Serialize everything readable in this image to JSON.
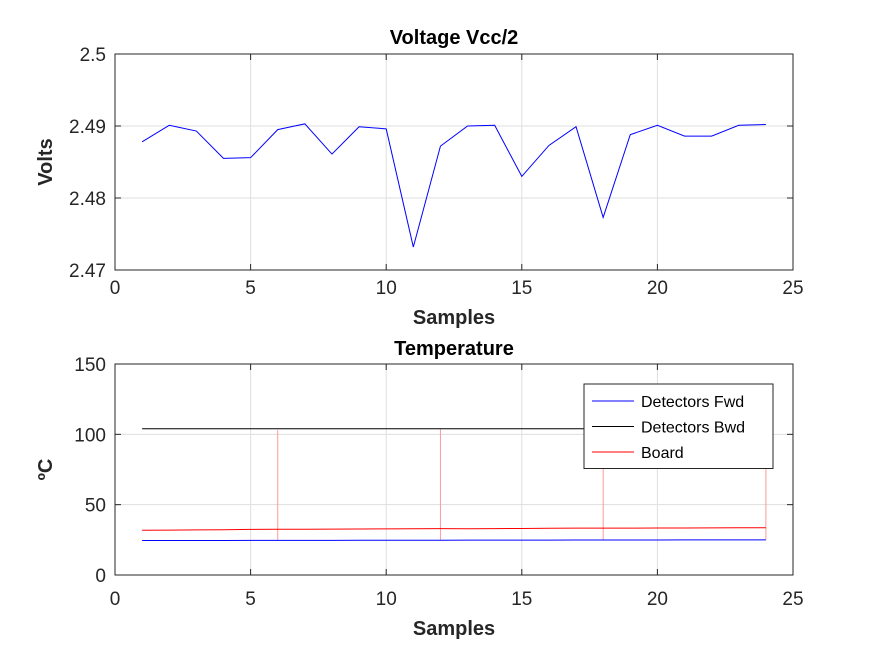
{
  "chart_data": [
    {
      "type": "line",
      "title": "Voltage Vcc/2",
      "xlabel": "Samples",
      "ylabel": "Volts",
      "xlim": [
        0,
        25
      ],
      "ylim": [
        2.47,
        2.5
      ],
      "xticks": [
        0,
        5,
        10,
        15,
        20,
        25
      ],
      "xtick_labels": [
        "0",
        "5",
        "10",
        "15",
        "20",
        "25"
      ],
      "yticks": [
        2.47,
        2.48,
        2.49,
        2.5
      ],
      "ytick_labels": [
        "2.47",
        "2.48",
        "2.49",
        "2.5"
      ],
      "grid": true,
      "series": [
        {
          "color": "#0000ff",
          "x": [
            1,
            2,
            3,
            4,
            5,
            6,
            7,
            8,
            9,
            10,
            11,
            12,
            13,
            14,
            15,
            16,
            17,
            18,
            19,
            20,
            21,
            22,
            23,
            24
          ],
          "y": [
            2.4878,
            2.4901,
            2.4893,
            2.4855,
            2.4856,
            2.4895,
            2.4903,
            2.4861,
            2.4899,
            2.4896,
            2.4732,
            2.4872,
            2.49,
            2.4901,
            2.483,
            2.4873,
            2.4899,
            2.4773,
            2.4888,
            2.4901,
            2.4886,
            2.4886,
            2.4901,
            2.4902
          ]
        }
      ]
    },
    {
      "type": "line",
      "title": "Temperature",
      "xlabel": "Samples",
      "ylabel": "ºC",
      "xlim": [
        0,
        25
      ],
      "ylim": [
        0,
        150
      ],
      "xticks": [
        0,
        5,
        10,
        15,
        20,
        25
      ],
      "xtick_labels": [
        "0",
        "5",
        "10",
        "15",
        "20",
        "25"
      ],
      "yticks": [
        0,
        50,
        100,
        150
      ],
      "ytick_labels": [
        "0",
        "50",
        "100",
        "150"
      ],
      "grid": true,
      "legend_placement": "top-right",
      "series": [
        {
          "name": "Detectors Fwd",
          "color": "#0000ff",
          "x": [
            1,
            2,
            3,
            4,
            5,
            6,
            7,
            8,
            9,
            10,
            11,
            12,
            13,
            14,
            15,
            16,
            17,
            18,
            19,
            20,
            21,
            22,
            23,
            24
          ],
          "y": [
            24.5,
            24.5,
            24.5,
            24.5,
            24.6,
            24.6,
            24.6,
            24.6,
            24.7,
            24.7,
            24.7,
            24.7,
            24.8,
            24.8,
            24.8,
            24.8,
            24.9,
            24.9,
            24.9,
            24.9,
            25.0,
            25.0,
            25.0,
            25.0
          ]
        },
        {
          "name": "Detectors Bwd",
          "color": "#000000",
          "x": [
            1,
            2,
            3,
            4,
            5,
            6,
            7,
            8,
            9,
            10,
            11,
            12,
            13,
            14,
            15,
            16,
            17,
            18,
            19,
            20,
            21,
            22,
            23,
            24
          ],
          "y": [
            104,
            104,
            104,
            104,
            104,
            104,
            104,
            104,
            104,
            104,
            104,
            104,
            104,
            104,
            104,
            104,
            104,
            104,
            104,
            104,
            104,
            104,
            104,
            104
          ]
        },
        {
          "name": "Board",
          "color": "#ff0000",
          "x": [
            1,
            2,
            3,
            4,
            5,
            6,
            7,
            8,
            9,
            10,
            11,
            12,
            13,
            14,
            15,
            16,
            17,
            18,
            19,
            20,
            21,
            22,
            23,
            24
          ],
          "y": [
            31.8,
            31.9,
            32.1,
            32.2,
            32.4,
            32.5,
            32.5,
            32.6,
            32.7,
            32.8,
            32.9,
            33.0,
            32.9,
            33.0,
            33.1,
            33.2,
            33.3,
            33.3,
            33.3,
            33.4,
            33.4,
            33.5,
            33.6,
            33.6
          ]
        }
      ],
      "spikes": {
        "color": "#ff9999",
        "x": [
          6,
          12,
          18,
          24
        ],
        "y_bottom": [
          25,
          25,
          25,
          25
        ],
        "y_top": [
          103,
          104,
          83,
          79
        ]
      }
    }
  ]
}
